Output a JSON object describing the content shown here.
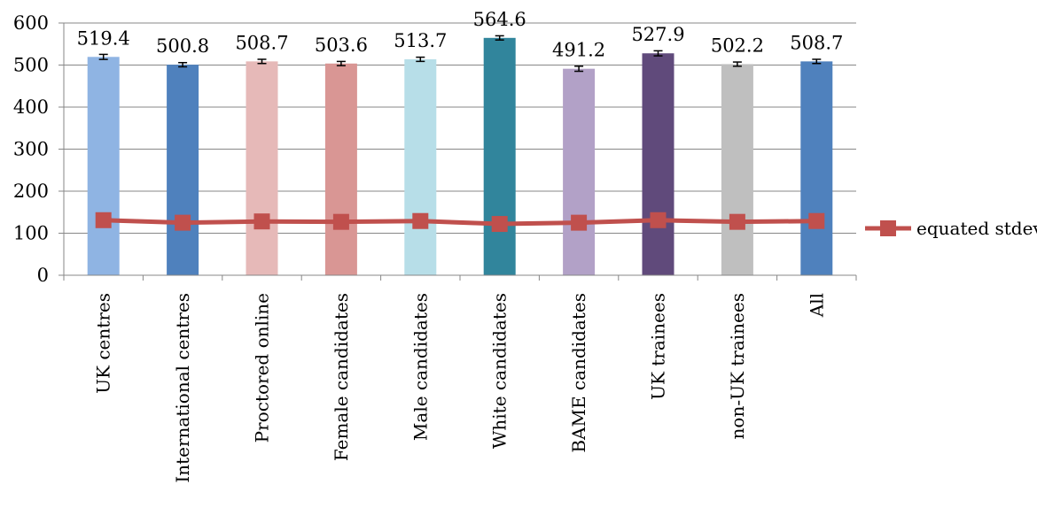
{
  "chart_data": {
    "type": "bar",
    "categories": [
      "UK centres",
      "International centres",
      "Proctored online",
      "Female candidates",
      "Male candidates",
      "White candidates",
      "BAME candidates",
      "UK trainees",
      "non-UK trainees",
      "All"
    ],
    "bar_values": [
      519.4,
      500.8,
      508.7,
      503.6,
      513.7,
      564.6,
      491.2,
      527.9,
      502.2,
      508.7
    ],
    "bar_labels": [
      "519.4",
      "500.8",
      "508.7",
      "503.6",
      "513.7",
      "564.6",
      "491.2",
      "527.9",
      "502.2",
      "508.7"
    ],
    "bar_errors": [
      6,
      5,
      5,
      5,
      5,
      5,
      6,
      6,
      5,
      5
    ],
    "bar_colors": [
      "#8FB4E3",
      "#4F81BD",
      "#E6B9B8",
      "#D99694",
      "#B7DEE8",
      "#31859C",
      "#B2A1C7",
      "#604A7B",
      "#BFBFBF",
      "#4F81BD"
    ],
    "series": [
      {
        "name": "equated stdev",
        "type": "line",
        "values": [
          131,
          125,
          128,
          127,
          129,
          122,
          125,
          131,
          127,
          129
        ],
        "color": "#C0504D"
      }
    ],
    "ylim": [
      0,
      600
    ],
    "yticks": [
      "0",
      "100",
      "200",
      "300",
      "400",
      "500",
      "600"
    ],
    "ytick_values": [
      0,
      100,
      200,
      300,
      400,
      500,
      600
    ],
    "grid": true,
    "legend": "right"
  }
}
